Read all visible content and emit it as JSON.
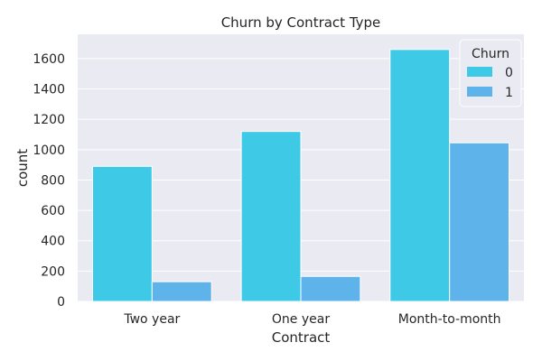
{
  "chart_data": {
    "type": "bar",
    "title": "Churn by Contract Type",
    "xlabel": "Contract",
    "ylabel": "count",
    "categories": [
      "Two year",
      "One year",
      "Month-to-month"
    ],
    "series": [
      {
        "name": "0",
        "values": [
          890,
          1120,
          1660
        ],
        "color": "#3ec9e6"
      },
      {
        "name": "1",
        "values": [
          130,
          165,
          1045
        ],
        "color": "#5db3ea"
      }
    ],
    "ylim": [
      0,
      1760
    ],
    "yticks": [
      0,
      200,
      400,
      600,
      800,
      1000,
      1200,
      1400,
      1600
    ],
    "grid": true,
    "legend": {
      "title": "Churn",
      "placement": "top-right"
    },
    "colors": {
      "plot_background": "#eaeaf2",
      "grid": "#ffffff",
      "text": "#262626"
    }
  }
}
